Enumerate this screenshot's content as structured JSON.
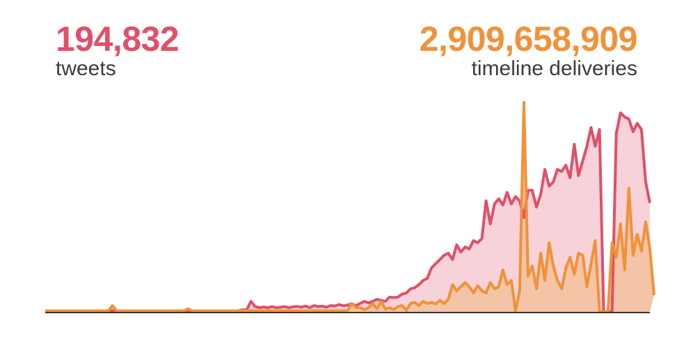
{
  "stats": {
    "tweets": {
      "value": "194,832",
      "label": "tweets",
      "color": "#e0506a"
    },
    "deliveries": {
      "value": "2,909,658,909",
      "label": "timeline deliveries",
      "color": "#f0923a"
    }
  },
  "colors": {
    "tweets_line": "#e0506a",
    "tweets_fill": "#f7d3d9",
    "deliveries_line": "#f0923a",
    "deliveries_fill": "#f4c4a6",
    "baseline": "#333333"
  },
  "chart_data": {
    "type": "area",
    "title": "",
    "xlabel": "",
    "ylabel": "",
    "ylim": [
      0,
      100
    ],
    "grid": false,
    "legend": "none",
    "x_count": 140,
    "series": [
      {
        "values": [
          0.5,
          0.5,
          0.5,
          0.5,
          0.5,
          0.5,
          0.5,
          0.5,
          0.5,
          0.5,
          0.5,
          0.5,
          0.5,
          0.5,
          0.5,
          0.5,
          0.5,
          0.5,
          0.5,
          0.5,
          0.5,
          0.5,
          0.5,
          0.5,
          0.5,
          0.5,
          0.5,
          0.5,
          0.5,
          0.5,
          0.5,
          0.5,
          0.5,
          0.5,
          0.5,
          0.5,
          0.5,
          0.5,
          0.5,
          0.5,
          0.5,
          0.5,
          0.5,
          0.5,
          0.5,
          0.5,
          0.5,
          1,
          1,
          5,
          2.5,
          2,
          2.3,
          2,
          2.5,
          2,
          2.2,
          2.5,
          2,
          2.4,
          2.6,
          2.2,
          2.8,
          2,
          3,
          2.5,
          2.7,
          2.2,
          3,
          2.8,
          3.5,
          2.9,
          3.2,
          3.9,
          3,
          4,
          5,
          4.2,
          5,
          6,
          5.5,
          5,
          7,
          6.8,
          7,
          8.5,
          9,
          11,
          11.5,
          13,
          15,
          16,
          21,
          23,
          25,
          27,
          28,
          25,
          32,
          28.5,
          31,
          30,
          34,
          33,
          35,
          53,
          42,
          51.5,
          54,
          51,
          57,
          51.5,
          55,
          53,
          45,
          58,
          58,
          50,
          56,
          68,
          60,
          62,
          68,
          67,
          70,
          64,
          80,
          65,
          72,
          79,
          88,
          79,
          87,
          0,
          0,
          0,
          85,
          95,
          93,
          92,
          86,
          90,
          87,
          62,
          52
        ]
      },
      {
        "values": [
          0.5,
          0.5,
          0.5,
          0.5,
          0.5,
          0.5,
          0.5,
          0.5,
          0.5,
          0.5,
          0.5,
          0.5,
          0.5,
          0.5,
          0.5,
          0.5,
          3,
          0.5,
          0.5,
          0.5,
          0.5,
          0.5,
          0.5,
          0.5,
          0.5,
          0.5,
          0.5,
          0.5,
          0.5,
          0.5,
          0.5,
          0.5,
          0.5,
          0.5,
          1.5,
          0.5,
          0.5,
          0.5,
          0.5,
          0.5,
          0.5,
          0.5,
          0.5,
          0.5,
          0.5,
          0.5,
          0.5,
          0.5,
          0.5,
          0.5,
          0.5,
          0.5,
          0.5,
          0.5,
          0.5,
          0.5,
          0.5,
          0.5,
          0.5,
          0.5,
          0.5,
          0.5,
          0.5,
          0.5,
          0.5,
          0.5,
          0.5,
          0.5,
          0.5,
          0.5,
          0.5,
          0.5,
          0.5,
          4,
          2,
          2,
          1,
          2,
          4,
          1.5,
          5,
          1.3,
          2,
          1.1,
          2.5,
          3,
          0.8,
          4,
          4.5,
          3,
          5,
          4,
          4.5,
          3.8,
          5.5,
          4,
          6,
          13,
          10,
          12,
          14,
          12,
          9,
          12.5,
          10,
          9,
          14,
          11,
          12,
          20,
          13,
          15,
          0.5,
          10,
          100,
          17,
          22,
          11,
          28,
          15,
          33,
          22,
          15,
          11,
          21,
          26,
          18,
          28,
          27,
          12,
          23,
          34,
          0,
          0,
          0,
          33,
          26,
          42,
          20,
          59,
          27,
          37,
          29,
          43,
          30,
          8
        ]
      }
    ],
    "tweets_spike_index_note": ""
  }
}
